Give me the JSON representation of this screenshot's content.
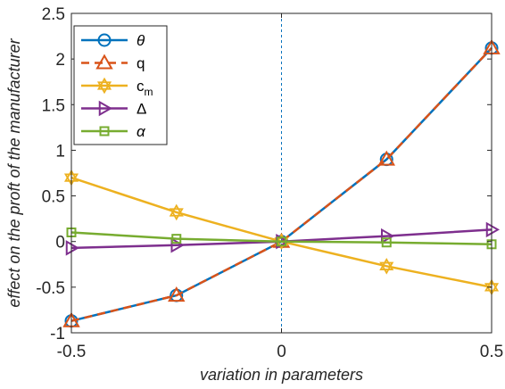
{
  "chart_data": {
    "type": "line",
    "xlabel": "variation in parameters",
    "ylabel": "effect on the proft of the manufacturer",
    "xlim": [
      -0.5,
      0.5
    ],
    "ylim": [
      -1,
      2.5
    ],
    "xticks": [
      -0.5,
      0,
      0.5
    ],
    "xtick_labels": [
      "-0.5",
      "0",
      "0.5"
    ],
    "yticks": [
      -1,
      -0.5,
      0,
      0.5,
      1,
      1.5,
      2,
      2.5
    ],
    "ytick_labels": [
      "-1",
      "-0.5",
      "0",
      "0.5",
      "1",
      "1.5",
      "2",
      "2.5"
    ],
    "grid": false,
    "legend_position": "top-left",
    "reference_line": {
      "x": 0,
      "style": "dashed",
      "color": "#0072BD"
    },
    "x": [
      -0.5,
      -0.25,
      0,
      0.25,
      0.5
    ],
    "series": [
      {
        "name": "θ",
        "marker": "circle",
        "color": "#0072BD",
        "dash": false,
        "values": [
          -0.87,
          -0.59,
          0.0,
          0.9,
          2.12
        ]
      },
      {
        "name": "q",
        "marker": "triangle",
        "color": "#D95319",
        "dash": true,
        "values": [
          -0.87,
          -0.59,
          0.0,
          0.9,
          2.12
        ]
      },
      {
        "name": "c_m",
        "marker": "hexagram",
        "color": "#EDB120",
        "dash": false,
        "values": [
          0.7,
          0.32,
          0.0,
          -0.27,
          -0.5
        ]
      },
      {
        "name": "Δ",
        "marker": "triangle-right",
        "color": "#7E2F8E",
        "dash": false,
        "values": [
          -0.07,
          -0.04,
          0.0,
          0.06,
          0.13
        ]
      },
      {
        "name": "α",
        "marker": "square",
        "color": "#77AC30",
        "dash": false,
        "values": [
          0.1,
          0.03,
          0.0,
          -0.01,
          -0.03
        ]
      }
    ]
  }
}
